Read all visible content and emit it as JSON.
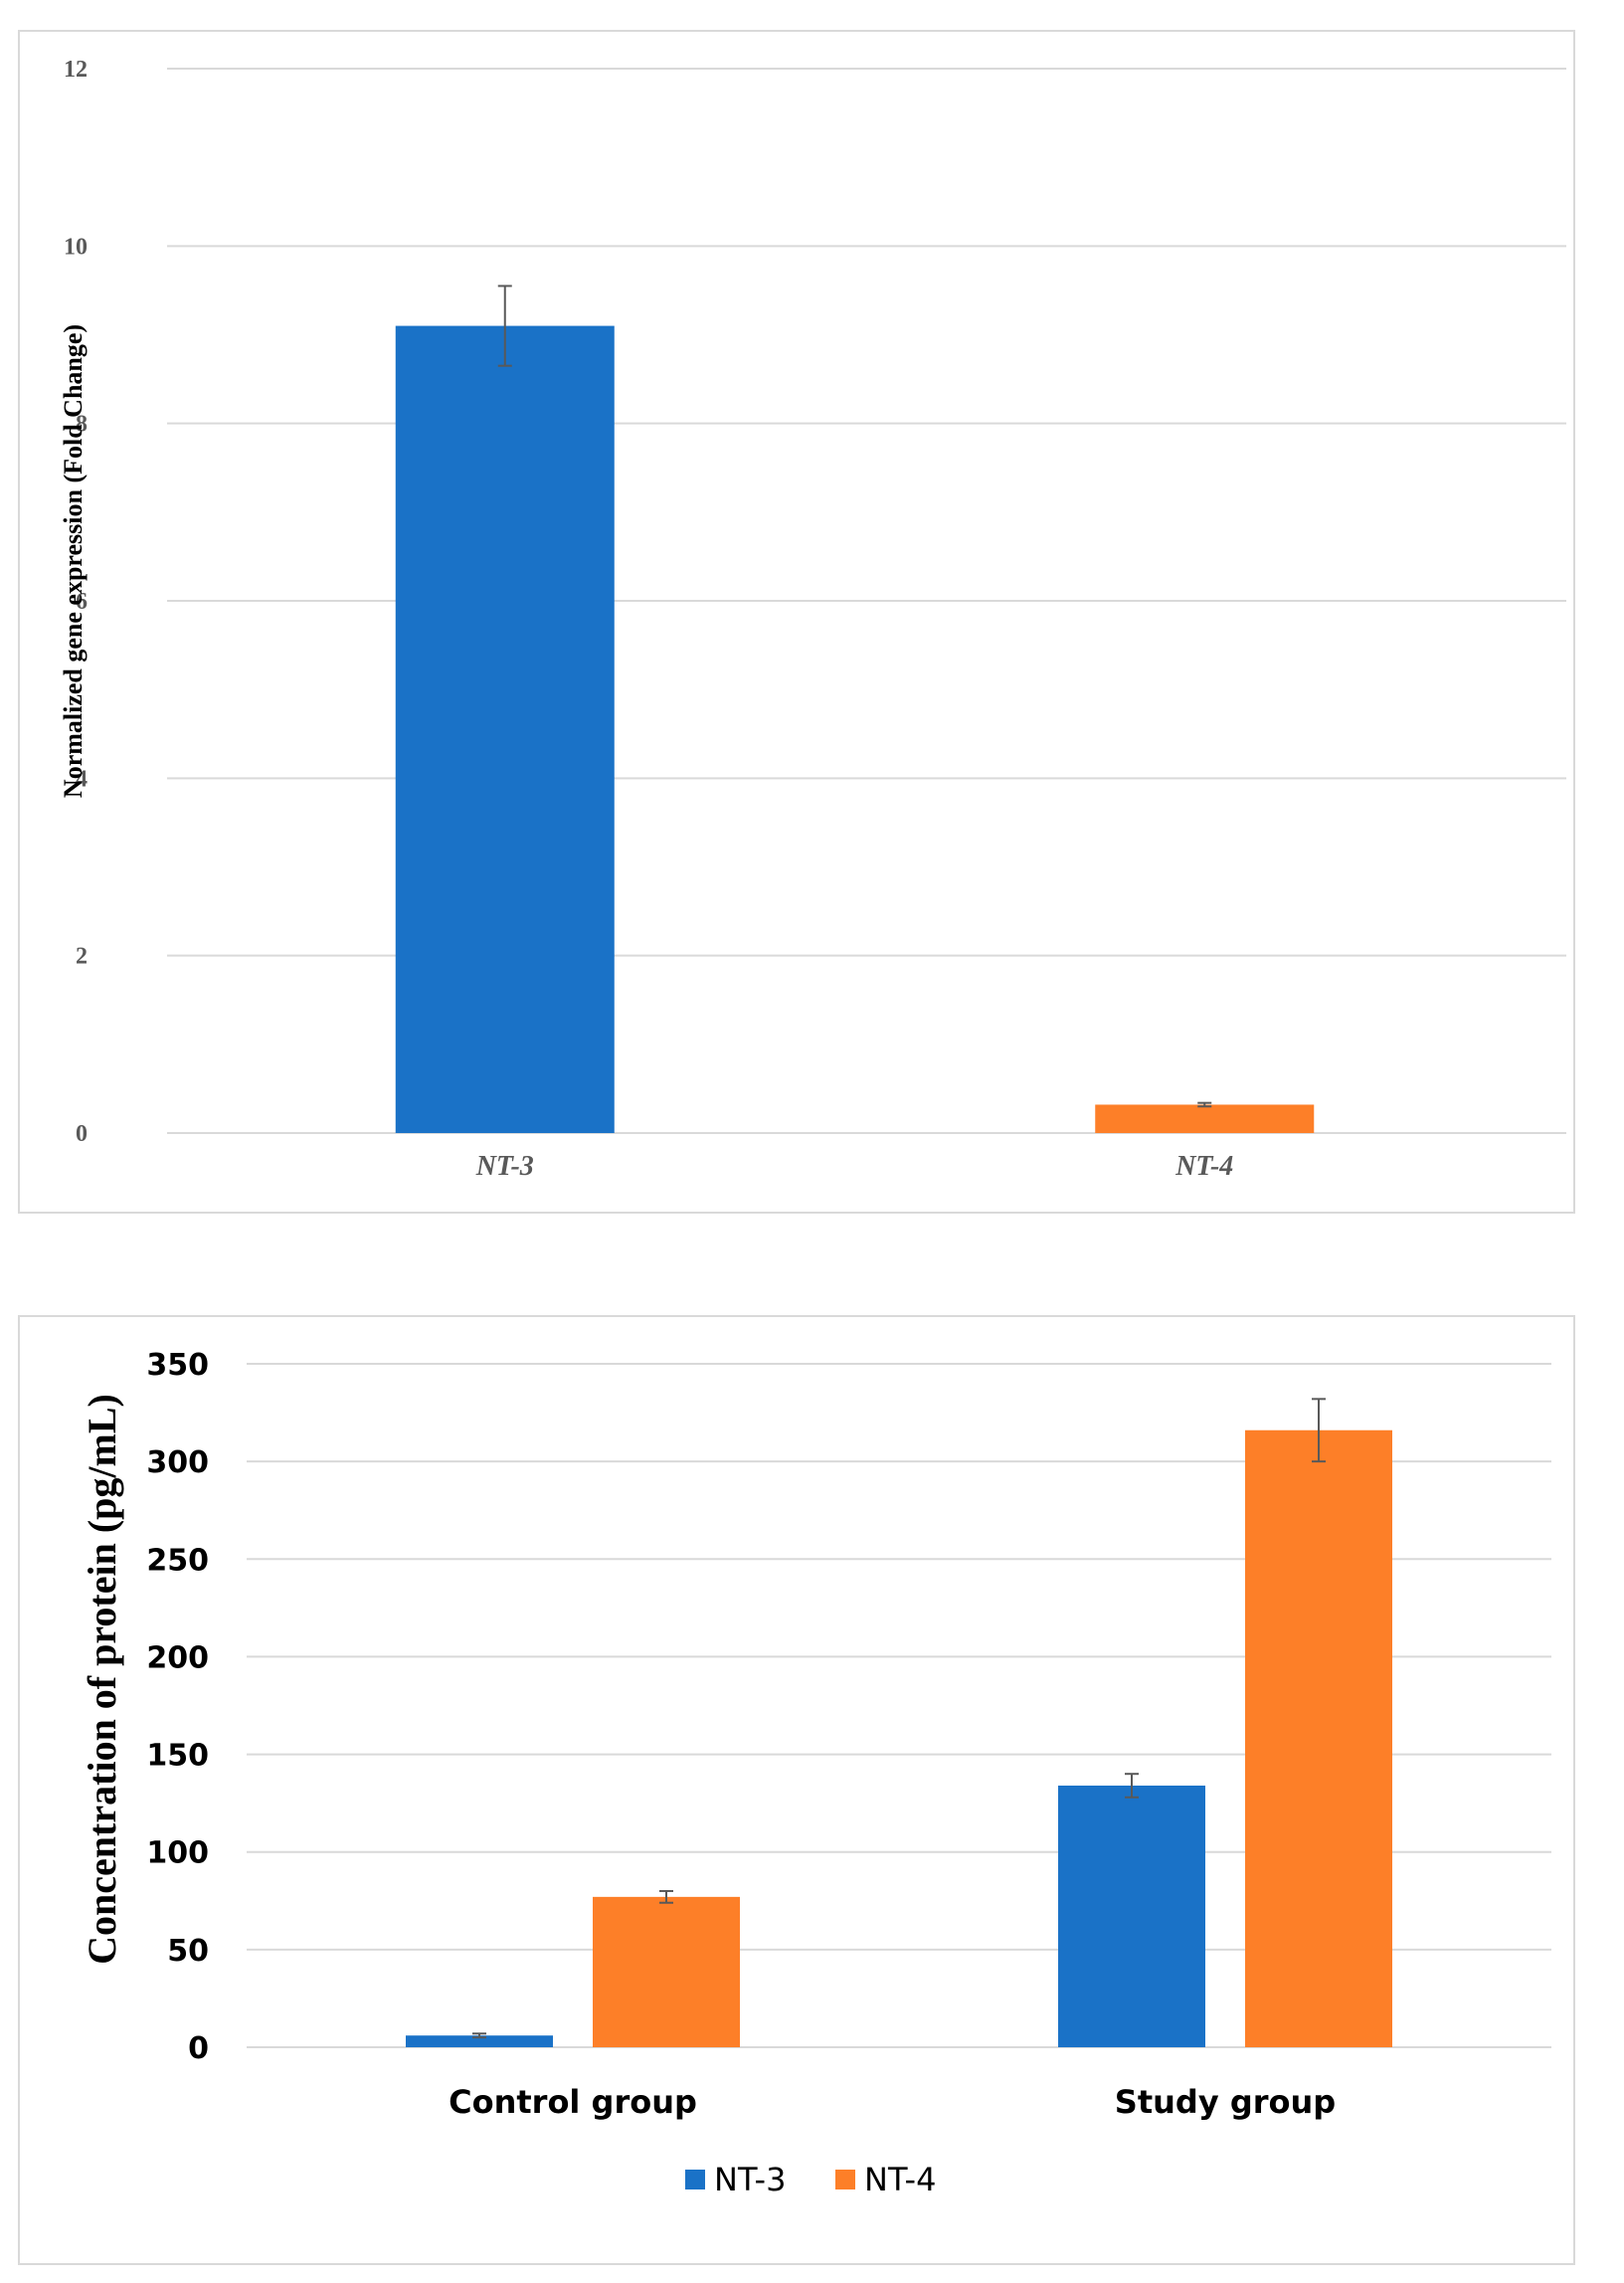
{
  "colors": {
    "nt3": "#1a72c7",
    "nt4": "#fd7f28",
    "grid": "#d9d9d9",
    "error": "#595959"
  },
  "chart_data": [
    {
      "type": "bar",
      "title": "",
      "xlabel": "",
      "ylabel": "Normalized gene expression (Fold Change)",
      "ylim": [
        0,
        12
      ],
      "yticks": [
        "0",
        "2",
        "4",
        "6",
        "8",
        "10",
        "12"
      ],
      "grid": true,
      "legend": "none",
      "categories": [
        "NT-3",
        "NT-4"
      ],
      "values": [
        9.1,
        0.32
      ],
      "errors": [
        0.45,
        0.02
      ],
      "bar_colors": [
        "nt3",
        "nt4"
      ]
    },
    {
      "type": "bar",
      "title": "",
      "xlabel": "",
      "ylabel": "Concentration of protein (pg/mL)",
      "ylim": [
        0,
        350
      ],
      "yticks": [
        "0",
        "50",
        "100",
        "150",
        "200",
        "250",
        "300",
        "350"
      ],
      "grid": true,
      "legend": "bottom",
      "categories": [
        "Control group",
        "Study group"
      ],
      "series": [
        {
          "name": "NT-3",
          "color": "nt3",
          "values": [
            6,
            134
          ],
          "errors": [
            1,
            6
          ]
        },
        {
          "name": "NT-4",
          "color": "nt4",
          "values": [
            77,
            316
          ],
          "errors": [
            3,
            16
          ]
        }
      ]
    }
  ]
}
